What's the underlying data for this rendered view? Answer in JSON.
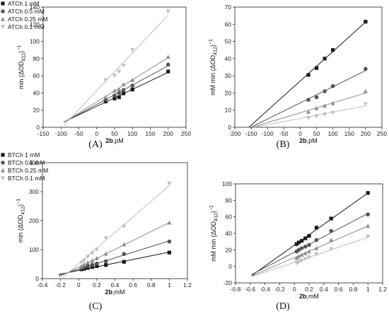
{
  "colors": {
    "s1": "#1a1a1a",
    "s2": "#555555",
    "s3": "#8c8c8c",
    "s4": "#bdbdbd"
  },
  "chart_data": [
    {
      "panel": "A",
      "type": "scatter",
      "fit": "line",
      "xlabel_bold": "2b",
      "xlabel_rest": ",pM",
      "ylabel_main": "min (ΔOD",
      "ylabel_sub": "412",
      "ylabel_tail": ")",
      "ylabel_sup": "−1",
      "xlim": [
        -150,
        250
      ],
      "ylim": [
        0,
        140
      ],
      "xticks": [
        -150,
        -100,
        -50,
        0,
        50,
        100,
        150,
        200,
        250
      ],
      "yticks": [
        0,
        20,
        40,
        60,
        80,
        100,
        120,
        140
      ],
      "ytick_labels": [
        "0",
        "20",
        "40",
        "60",
        "80",
        "100",
        "120",
        "140"
      ],
      "legend": "top-left",
      "intersect": [
        -92,
        7
      ],
      "series": [
        {
          "name": "ATCh 1 mM",
          "marker": "square",
          "x": [
            25,
            50,
            62.5,
            75,
            100,
            200
          ],
          "y": [
            30,
            33.5,
            35,
            39.5,
            44,
            65
          ]
        },
        {
          "name": "ATCh 0.5 mM",
          "marker": "circle",
          "x": [
            25,
            50,
            62.5,
            75,
            100,
            200
          ],
          "y": [
            32,
            37,
            40,
            43.5,
            48.5,
            73
          ]
        },
        {
          "name": "ATCh 0.25 mM",
          "marker": "triangle",
          "x": [
            25,
            50,
            62.5,
            75,
            100,
            200
          ],
          "y": [
            35,
            42.5,
            44,
            50,
            55,
            82
          ]
        },
        {
          "name": "ATCh 0.1 mM",
          "marker": "triangle-down",
          "x": [
            25,
            50,
            62.5,
            75,
            100,
            200
          ],
          "y": [
            55,
            60,
            65,
            72,
            90,
            135
          ]
        }
      ]
    },
    {
      "panel": "B",
      "type": "scatter",
      "fit": "line",
      "xlabel_bold": "2b",
      "xlabel_rest": ",pM",
      "ylabel_main": "mM min (ΔOD",
      "ylabel_sub": "412",
      "ylabel_tail": ")",
      "ylabel_sup": "−1",
      "xlim": [
        -200,
        250
      ],
      "ylim": [
        0,
        70
      ],
      "xticks": [
        -200,
        -150,
        -100,
        -50,
        0,
        50,
        100,
        150,
        200,
        250
      ],
      "yticks": [
        0,
        10,
        20,
        30,
        40,
        50,
        60,
        70
      ],
      "ytick_labels": [
        "0",
        "10",
        "20",
        "30",
        "40",
        "50",
        "60",
        "70"
      ],
      "intersect": [
        -160,
        0
      ],
      "series": [
        {
          "name": "",
          "marker": "square",
          "x": [
            25,
            50,
            75,
            100,
            200
          ],
          "y": [
            30.5,
            34.5,
            40,
            45,
            61.5
          ]
        },
        {
          "name": "",
          "marker": "circle",
          "x": [
            25,
            50,
            75,
            100,
            200
          ],
          "y": [
            16,
            17.5,
            21,
            24,
            34
          ]
        },
        {
          "name": "",
          "marker": "triangle",
          "x": [
            25,
            50,
            75,
            100,
            200
          ],
          "y": [
            9,
            11,
            12.5,
            14,
            21
          ]
        },
        {
          "name": "",
          "marker": "triangle-down",
          "x": [
            25,
            50,
            75,
            100,
            200
          ],
          "y": [
            5.5,
            6.5,
            7.5,
            8.5,
            13.5
          ]
        }
      ]
    },
    {
      "panel": "C",
      "type": "scatter",
      "fit": "line",
      "xlabel_bold": "2b",
      "xlabel_rest": ",mM",
      "ylabel_main": "min (ΔOD",
      "ylabel_sub": "412",
      "ylabel_tail": ")",
      "ylabel_sup": "−1",
      "xlim": [
        -0.4,
        1.2
      ],
      "ylim": [
        0,
        400
      ],
      "xticks": [
        -0.4,
        -0.2,
        0.0,
        0.2,
        0.4,
        0.6,
        0.8,
        1.0,
        1.2
      ],
      "yticks": [
        0,
        100,
        200,
        300,
        400
      ],
      "ytick_labels": [
        "0",
        "100",
        "200",
        "300",
        "400"
      ],
      "legend": "top-left",
      "intersect": [
        -0.22,
        8
      ],
      "series": [
        {
          "name": "BTCh 1 mM",
          "marker": "square",
          "x": [
            0.03,
            0.06,
            0.1,
            0.15,
            0.2,
            0.3,
            0.5,
            1.0
          ],
          "y": [
            32,
            34,
            37,
            40,
            43,
            47,
            58,
            90
          ]
        },
        {
          "name": "BTCh 0.5 mM",
          "marker": "circle",
          "x": [
            0.03,
            0.06,
            0.1,
            0.15,
            0.2,
            0.3,
            0.5,
            1.0
          ],
          "y": [
            36,
            40,
            44,
            48,
            52,
            60,
            85,
            128
          ]
        },
        {
          "name": "BTCh 0.25 mM",
          "marker": "triangle",
          "x": [
            0.03,
            0.06,
            0.1,
            0.15,
            0.2,
            0.3,
            0.5,
            1.0
          ],
          "y": [
            42,
            48,
            55,
            62,
            70,
            86,
            118,
            193
          ]
        },
        {
          "name": "BTCh 0.1 mM",
          "marker": "triangle-down",
          "x": [
            0.03,
            0.06,
            0.1,
            0.15,
            0.2,
            0.3,
            0.5,
            1.0
          ],
          "y": [
            55,
            62,
            75,
            88,
            100,
            140,
            180,
            328
          ]
        }
      ]
    },
    {
      "panel": "D",
      "type": "scatter",
      "fit": "line",
      "xlabel_bold": "2b",
      "xlabel_rest": ",mM",
      "ylabel_main": "mM min (ΔOD",
      "ylabel_sub": "412",
      "ylabel_tail": ")",
      "ylabel_sup": "−1",
      "xlim": [
        -0.8,
        1.2
      ],
      "ylim": [
        -20,
        100
      ],
      "xticks": [
        -0.8,
        -0.6,
        -0.4,
        -0.2,
        0.0,
        0.2,
        0.4,
        0.6,
        0.8,
        1.0,
        1.2
      ],
      "yticks": [
        -20,
        0,
        20,
        40,
        60,
        80,
        100
      ],
      "ytick_labels": [
        "-20",
        "0",
        "20",
        "40",
        "60",
        "80",
        "100"
      ],
      "intersect": [
        -0.58,
        -10
      ],
      "series": [
        {
          "name": "",
          "marker": "square",
          "x": [
            0.03,
            0.06,
            0.1,
            0.15,
            0.2,
            0.3,
            0.5,
            1.0
          ],
          "y": [
            27,
            29,
            31,
            34,
            37,
            47,
            58,
            89
          ]
        },
        {
          "name": "",
          "marker": "circle",
          "x": [
            0.03,
            0.06,
            0.1,
            0.15,
            0.2,
            0.3,
            0.5,
            1.0
          ],
          "y": [
            18,
            20,
            22,
            24,
            26,
            32,
            43,
            63
          ]
        },
        {
          "name": "",
          "marker": "triangle",
          "x": [
            0.03,
            0.06,
            0.1,
            0.15,
            0.2,
            0.3,
            0.5,
            1.0
          ],
          "y": [
            10,
            12,
            14,
            16,
            18,
            22,
            32,
            49
          ]
        },
        {
          "name": "",
          "marker": "triangle-down",
          "x": [
            0.03,
            0.06,
            0.1,
            0.15,
            0.2,
            0.3,
            0.5,
            1.0
          ],
          "y": [
            4,
            5,
            7,
            9,
            11,
            15,
            21,
            36
          ]
        }
      ]
    }
  ],
  "panel_labels": [
    "(A)",
    "(B)",
    "(C)",
    "(D)"
  ]
}
